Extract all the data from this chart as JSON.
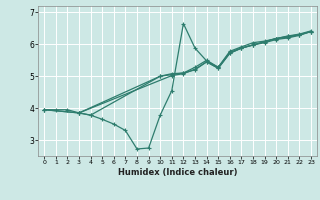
{
  "xlabel": "Humidex (Indice chaleur)",
  "background_color": "#cde8e5",
  "grid_color": "#ffffff",
  "line_color": "#2e7d6e",
  "xlim": [
    -0.5,
    23.5
  ],
  "ylim": [
    2.5,
    7.2
  ],
  "yticks": [
    3,
    4,
    5,
    6,
    7
  ],
  "xticks": [
    0,
    1,
    2,
    3,
    4,
    5,
    6,
    7,
    8,
    9,
    10,
    11,
    12,
    13,
    14,
    15,
    16,
    17,
    18,
    19,
    20,
    21,
    22,
    23
  ],
  "line1_x": [
    0,
    1,
    2,
    3,
    4,
    10,
    11,
    12,
    13,
    14,
    15,
    16,
    17,
    18,
    19,
    20,
    21,
    22,
    23
  ],
  "line1_y": [
    3.95,
    3.95,
    3.95,
    3.85,
    3.78,
    5.0,
    5.08,
    5.1,
    5.28,
    5.5,
    5.28,
    5.78,
    5.92,
    6.05,
    6.1,
    6.18,
    6.25,
    6.3,
    6.4
  ],
  "line2_x": [
    3,
    4,
    5,
    6,
    7,
    8,
    9,
    10,
    11,
    12,
    13,
    14,
    15,
    16,
    17,
    18,
    19,
    20,
    21,
    22,
    23
  ],
  "line2_y": [
    3.85,
    3.78,
    3.65,
    3.5,
    3.3,
    2.72,
    2.75,
    3.78,
    4.55,
    6.65,
    5.88,
    5.48,
    5.28,
    5.75,
    5.88,
    5.98,
    6.08,
    6.18,
    6.26,
    6.32,
    6.42
  ],
  "line3_x": [
    0,
    3,
    10,
    11,
    12,
    13,
    14,
    15,
    16,
    17,
    18,
    19,
    20,
    21,
    22,
    23
  ],
  "line3_y": [
    3.95,
    3.85,
    5.0,
    5.05,
    5.1,
    5.2,
    5.45,
    5.25,
    5.72,
    5.88,
    5.98,
    6.05,
    6.15,
    6.2,
    6.28,
    6.4
  ],
  "line4_x": [
    0,
    3,
    11,
    12,
    13,
    14,
    15,
    16,
    17,
    18,
    19,
    20,
    21,
    22,
    23
  ],
  "line4_y": [
    3.95,
    3.85,
    5.02,
    5.08,
    5.22,
    5.45,
    5.25,
    5.72,
    5.88,
    5.98,
    6.08,
    6.18,
    6.22,
    6.3,
    6.4
  ]
}
